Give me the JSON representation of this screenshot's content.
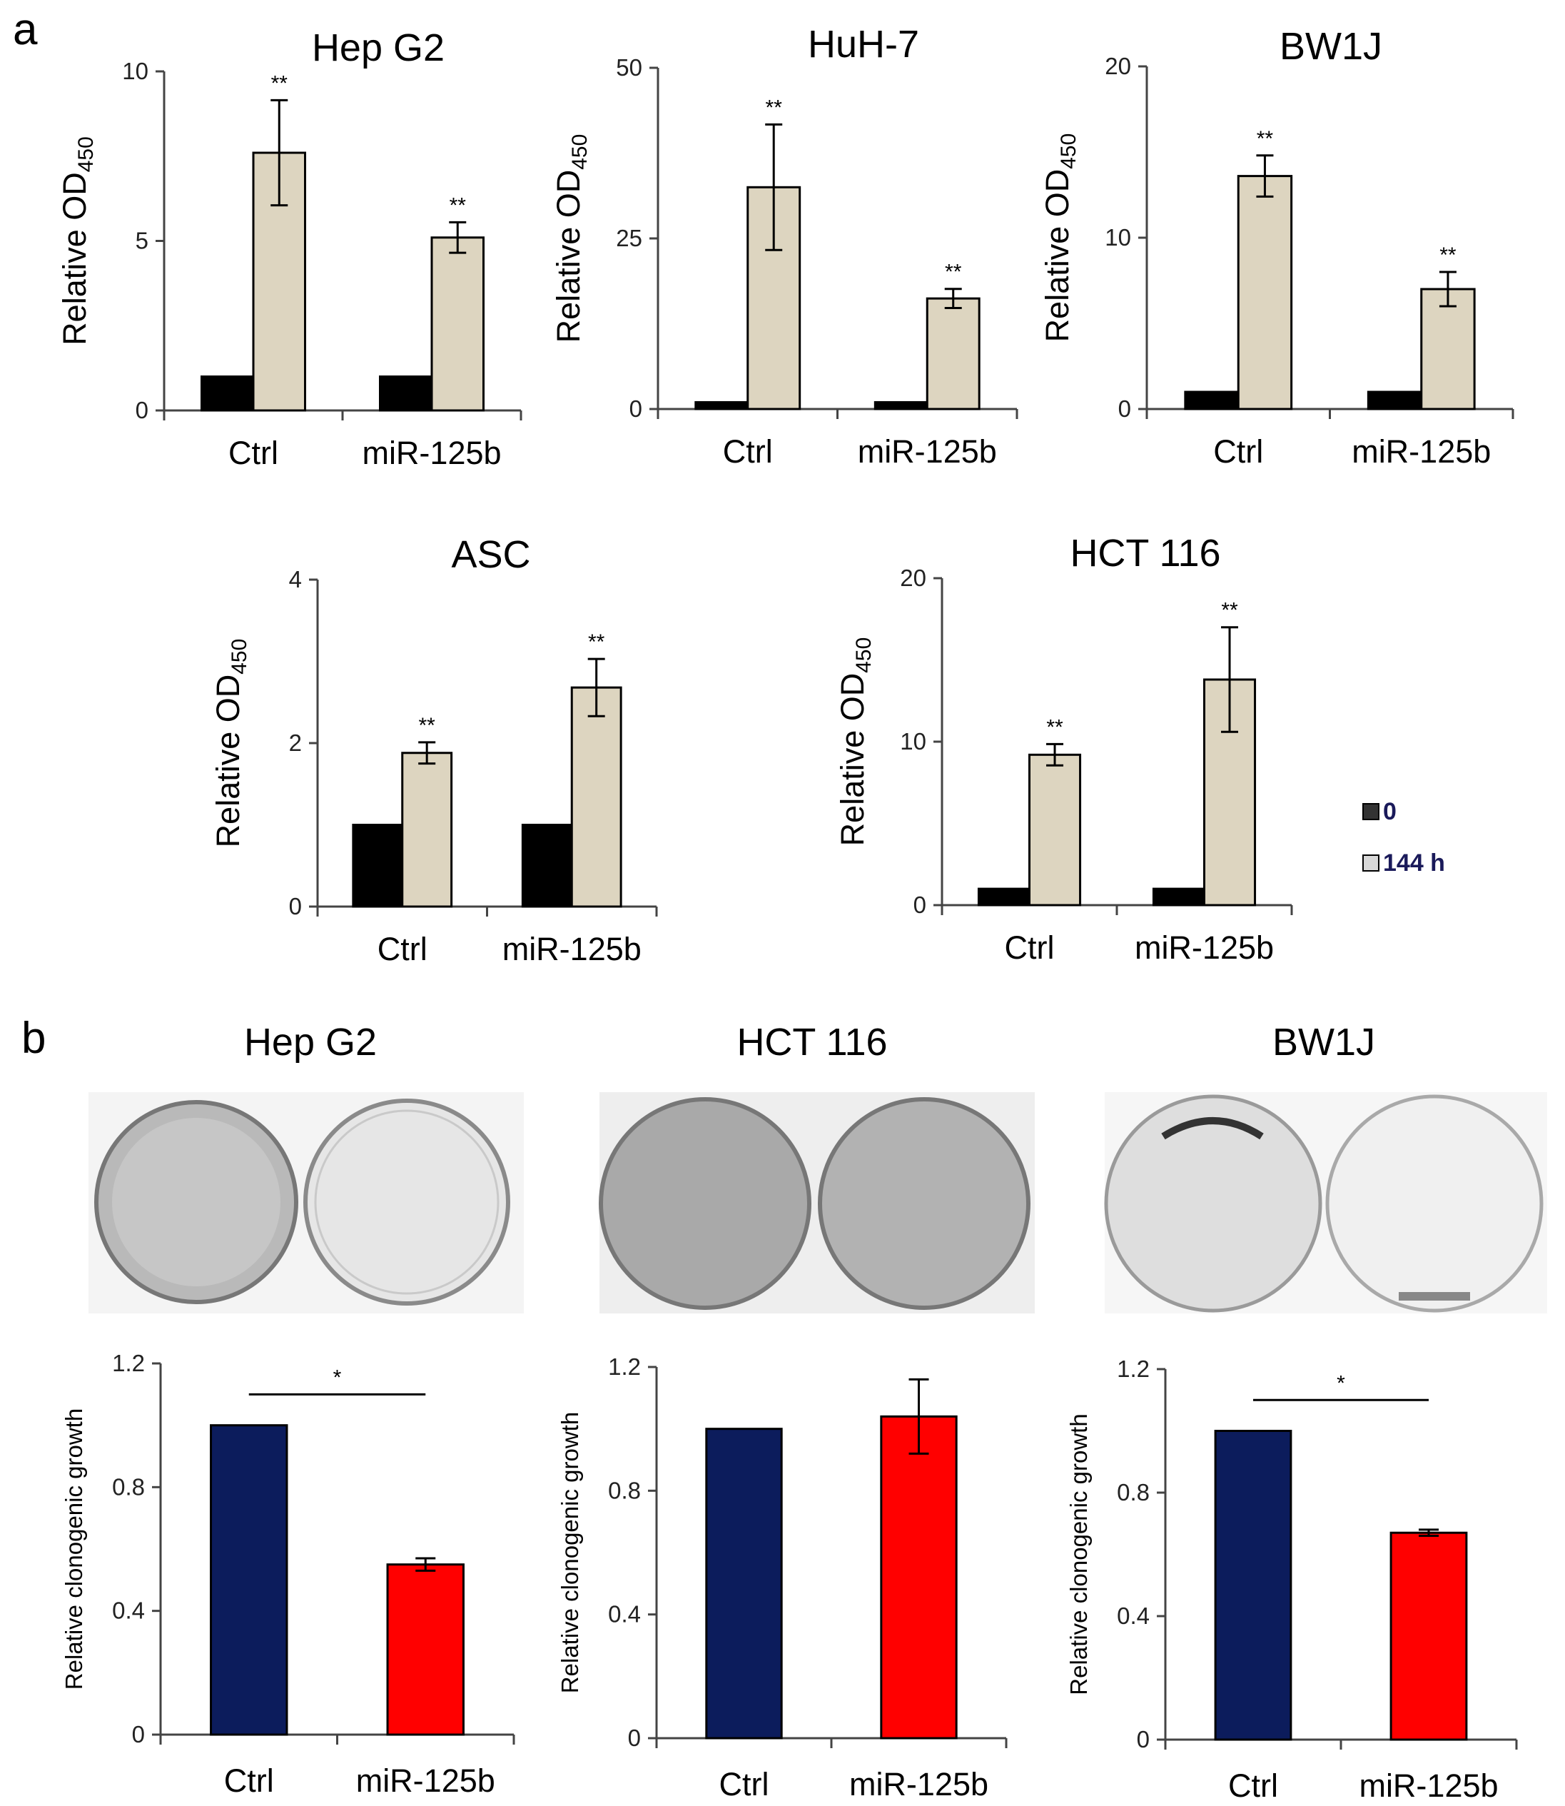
{
  "panel_labels": [
    "a",
    "b"
  ],
  "legend": {
    "items": [
      {
        "label": "0",
        "color": "#000000"
      },
      {
        "label": "144 h",
        "color": "#ddd5c0"
      }
    ]
  },
  "colors": {
    "t0": "#000000",
    "t144": "#ddd5c0",
    "ctrl_clonogenic": "#0c1c5c",
    "mir_clonogenic": "#ff0000"
  },
  "plates": [
    {
      "title": "Hep G2",
      "description": "Hep G2 colony plates: Ctrl dense, miR-125b sparse"
    },
    {
      "title": "HCT 116",
      "description": "HCT 116 colony plates: both dense"
    },
    {
      "title": "BW1J",
      "description": "BW1J colony plates: Ctrl sparse colonies, miR-125b nearly empty"
    }
  ],
  "chart_data": [
    {
      "id": "a1",
      "type": "bar",
      "title": "Hep G2",
      "ylabel": "Relative OD",
      "ylabel_sub": "450",
      "categories": [
        "Ctrl",
        "miR-125b"
      ],
      "ylim": [
        0,
        10
      ],
      "yticks": [
        0,
        5,
        10
      ],
      "series": [
        {
          "name": "0",
          "values": [
            1,
            1
          ]
        },
        {
          "name": "144 h",
          "values": [
            7.6,
            5.1
          ],
          "errors": [
            1.55,
            0.45
          ]
        }
      ],
      "annotations": [
        "**",
        "**"
      ]
    },
    {
      "id": "a2",
      "type": "bar",
      "title": "HuH-7",
      "ylabel": "Relative OD",
      "ylabel_sub": "450",
      "categories": [
        "Ctrl",
        "miR-125b"
      ],
      "ylim": [
        0,
        50
      ],
      "yticks": [
        0,
        25,
        50
      ],
      "series": [
        {
          "name": "0",
          "values": [
            1,
            1
          ]
        },
        {
          "name": "144 h",
          "values": [
            32.5,
            16.2
          ],
          "errors": [
            9.2,
            1.4
          ]
        }
      ],
      "annotations": [
        "**",
        "**"
      ]
    },
    {
      "id": "a3",
      "type": "bar",
      "title": "BW1J",
      "ylabel": "Relative OD",
      "ylabel_sub": "450",
      "categories": [
        "Ctrl",
        "miR-125b"
      ],
      "ylim": [
        0,
        20
      ],
      "yticks": [
        0,
        10,
        20
      ],
      "series": [
        {
          "name": "0",
          "values": [
            1,
            1
          ]
        },
        {
          "name": "144 h",
          "values": [
            13.6,
            7
          ],
          "errors": [
            1.2,
            1
          ]
        }
      ],
      "annotations": [
        "**",
        "**"
      ]
    },
    {
      "id": "a4",
      "type": "bar",
      "title": "ASC",
      "ylabel": "Relative OD",
      "ylabel_sub": "450",
      "categories": [
        "Ctrl",
        "miR-125b"
      ],
      "ylim": [
        0,
        4
      ],
      "yticks": [
        0,
        2,
        4
      ],
      "series": [
        {
          "name": "0",
          "values": [
            1,
            1
          ]
        },
        {
          "name": "144 h",
          "values": [
            1.88,
            2.68
          ],
          "errors": [
            0.13,
            0.35
          ]
        }
      ],
      "annotations": [
        "**",
        "**"
      ]
    },
    {
      "id": "a5",
      "type": "bar",
      "title": "HCT 116",
      "ylabel": "Relative OD",
      "ylabel_sub": "450",
      "categories": [
        "Ctrl",
        "miR-125b"
      ],
      "ylim": [
        0,
        20
      ],
      "yticks": [
        0,
        10,
        20
      ],
      "series": [
        {
          "name": "0",
          "values": [
            1,
            1
          ]
        },
        {
          "name": "144 h",
          "values": [
            9.2,
            13.8
          ],
          "errors": [
            0.65,
            3.2
          ]
        }
      ],
      "annotations": [
        "**",
        "**"
      ]
    },
    {
      "id": "b1",
      "type": "bar",
      "title": "",
      "ylabel": "Relative clonogenic growth",
      "categories": [
        "Ctrl",
        "miR-125b"
      ],
      "ylim": [
        0,
        1.2
      ],
      "yticks": [
        0,
        0.4,
        0.8,
        1.2
      ],
      "series": [
        {
          "name": "clonogenic",
          "values": [
            1.0,
            0.55
          ],
          "errors": [
            0,
            0.02
          ]
        }
      ],
      "significance": "*"
    },
    {
      "id": "b2",
      "type": "bar",
      "title": "",
      "ylabel": "Relative clonogenic growth",
      "categories": [
        "Ctrl",
        "miR-125b"
      ],
      "ylim": [
        0,
        1.2
      ],
      "yticks": [
        0,
        0.4,
        0.8,
        1.2
      ],
      "series": [
        {
          "name": "clonogenic",
          "values": [
            1.0,
            1.04
          ],
          "errors": [
            0,
            0.12
          ]
        }
      ],
      "significance": ""
    },
    {
      "id": "b3",
      "type": "bar",
      "title": "",
      "ylabel": "Relative clonogenic growth",
      "categories": [
        "Ctrl",
        "miR-125b"
      ],
      "ylim": [
        0,
        1.2
      ],
      "yticks": [
        0,
        0.4,
        0.8,
        1.2
      ],
      "series": [
        {
          "name": "clonogenic",
          "values": [
            1.0,
            0.67
          ],
          "errors": [
            0,
            0.01
          ]
        }
      ],
      "significance": "*"
    }
  ]
}
